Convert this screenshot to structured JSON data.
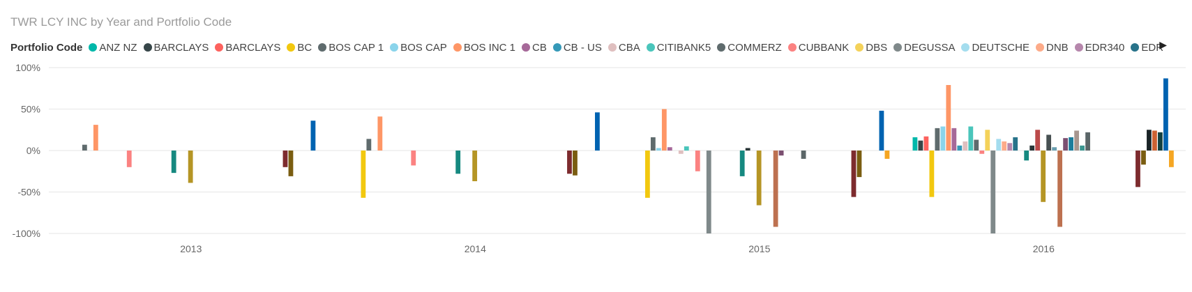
{
  "chart_data": {
    "type": "bar",
    "title": "TWR LCY INC by Year and Portfolio Code",
    "legend_title": "Portfolio Code",
    "legend_placement": "top",
    "legend": [
      {
        "name": "ANZ NZ",
        "color": "#01B8AA"
      },
      {
        "name": "BARCLAYS",
        "color": "#374649"
      },
      {
        "name": "BARCLAYS",
        "color": "#FD625E"
      },
      {
        "name": "BC",
        "color": "#F2C80F"
      },
      {
        "name": "BOS CAP 1",
        "color": "#5F6B6D"
      },
      {
        "name": "BOS CAP",
        "color": "#8AD4EB"
      },
      {
        "name": "BOS INC 1",
        "color": "#FE9666"
      },
      {
        "name": "CB",
        "color": "#A66999"
      },
      {
        "name": "CB - US",
        "color": "#3599B8"
      },
      {
        "name": "CBA",
        "color": "#DFBFBF"
      },
      {
        "name": "CITIBANK5",
        "color": "#4AC5BB"
      },
      {
        "name": "COMMERZ",
        "color": "#5F6B6D"
      },
      {
        "name": "CUBBANK",
        "color": "#FB8281"
      },
      {
        "name": "DBS",
        "color": "#F4D25A"
      },
      {
        "name": "DEGUSSA",
        "color": "#7F898A"
      },
      {
        "name": "DEUTSCHE",
        "color": "#A4DDEE"
      },
      {
        "name": "DNB",
        "color": "#FDAB89"
      },
      {
        "name": "EDR340",
        "color": "#B687AC"
      },
      {
        "name": "EDR",
        "color": "#28738A"
      }
    ],
    "categories": [
      "2013",
      "2014",
      "2015",
      "2016"
    ],
    "ylim": [
      -100,
      100
    ],
    "yticks": [
      "100%",
      "50%",
      "0%",
      "-50%",
      "-100%"
    ],
    "ytick_values": [
      100,
      50,
      0,
      -50,
      -100
    ],
    "grid": true,
    "bar_colors": [
      "#01B8AA",
      "#374649",
      "#FD625E",
      "#F2C80F",
      "#5F6B6D",
      "#8AD4EB",
      "#FE9666",
      "#A66999",
      "#3599B8",
      "#DFBFBF",
      "#4AC5BB",
      "#5F6B6D",
      "#FB8281",
      "#F4D25A",
      "#7F898A",
      "#A4DDEE",
      "#FDAB89",
      "#B687AC",
      "#28738A",
      "#A78F2F",
      "#168980",
      "#293537",
      "#BB4A4A",
      "#B59525",
      "#475052",
      "#6A9FB0",
      "#BD7150",
      "#7B4F71",
      "#1B7D9C",
      "#A7968F",
      "#3B9690",
      "#5B6668",
      "#C15E5D",
      "#BC9D40",
      "#615C5C",
      "#7D9FA8",
      "#C3795B",
      "#8C6A87",
      "#1D5A6C",
      "#866E16",
      "#7D2B2E",
      "#7A5D11",
      "#1A2427",
      "#CC6233",
      "#13403F",
      "#0063B1",
      "#F5A623"
    ],
    "series_values": [
      [
        null,
        null,
        null,
        16
      ],
      [
        null,
        null,
        null,
        12
      ],
      [
        null,
        null,
        null,
        17
      ],
      [
        null,
        -57,
        -57,
        -56
      ],
      [
        7,
        14,
        16,
        27
      ],
      [
        null,
        null,
        3,
        29
      ],
      [
        31,
        41,
        50,
        79
      ],
      [
        null,
        null,
        4,
        27
      ],
      [
        null,
        null,
        null,
        6
      ],
      [
        null,
        null,
        -4,
        11
      ],
      [
        null,
        null,
        5,
        29
      ],
      [
        null,
        null,
        null,
        13
      ],
      [
        -20,
        -18,
        -25,
        -4
      ],
      [
        null,
        null,
        null,
        25
      ],
      [
        null,
        null,
        -100,
        -100
      ],
      [
        null,
        null,
        null,
        14
      ],
      [
        null,
        null,
        null,
        11
      ],
      [
        null,
        null,
        null,
        9
      ],
      [
        null,
        null,
        null,
        16
      ],
      [
        null,
        null,
        null,
        null
      ],
      [
        -27,
        -28,
        -31,
        -12
      ],
      [
        null,
        null,
        3,
        6
      ],
      [
        null,
        null,
        null,
        25
      ],
      [
        -39,
        -37,
        -66,
        -62
      ],
      [
        null,
        null,
        null,
        19
      ],
      [
        null,
        null,
        null,
        4
      ],
      [
        null,
        null,
        -92,
        -92
      ],
      [
        null,
        null,
        -6,
        15
      ],
      [
        null,
        null,
        null,
        16
      ],
      [
        null,
        null,
        null,
        24
      ],
      [
        null,
        null,
        null,
        6
      ],
      [
        null,
        null,
        -10,
        22
      ],
      [
        null,
        null,
        null,
        null
      ],
      [
        null,
        null,
        null,
        null
      ],
      [
        null,
        null,
        null,
        null
      ],
      [
        null,
        null,
        null,
        null
      ],
      [
        null,
        null,
        null,
        null
      ],
      [
        null,
        null,
        null,
        null
      ],
      [
        null,
        null,
        null,
        null
      ],
      [
        null,
        null,
        null,
        null
      ],
      [
        -20,
        -28,
        -56,
        -44
      ],
      [
        -31,
        -30,
        -32,
        -17
      ],
      [
        null,
        null,
        null,
        25
      ],
      [
        null,
        null,
        null,
        24
      ],
      [
        null,
        null,
        null,
        22
      ],
      [
        36,
        46,
        48,
        87
      ],
      [
        null,
        null,
        -10,
        -20
      ]
    ]
  }
}
